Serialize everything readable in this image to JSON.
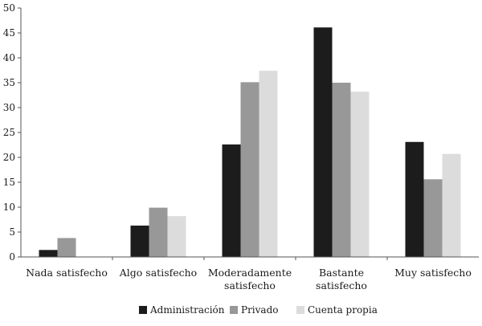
{
  "chart_data": {
    "type": "bar",
    "title": "",
    "xlabel": "",
    "ylabel": "",
    "ylim": [
      0,
      50
    ],
    "yticks": [
      0,
      5,
      10,
      15,
      20,
      25,
      30,
      35,
      40,
      45,
      50
    ],
    "grid": false,
    "legend_position": "bottom-center",
    "categories": [
      [
        "Nada satisfecho"
      ],
      [
        "Algo satisfecho"
      ],
      [
        "Moderadamente",
        "satisfecho"
      ],
      [
        "Bastante",
        "satisfecho"
      ],
      [
        "Muy satisfecho"
      ]
    ],
    "series": [
      {
        "name": "Administración",
        "color": "#1c1c1c",
        "values": [
          1.4,
          6.3,
          22.6,
          46.1,
          23.1
        ]
      },
      {
        "name": "Privado",
        "color": "#989898",
        "values": [
          3.8,
          9.9,
          35.1,
          35.0,
          15.6
        ]
      },
      {
        "name": "Cuenta propia",
        "color": "#dcdcdc",
        "values": [
          0,
          8.2,
          37.4,
          33.2,
          20.7
        ]
      }
    ]
  }
}
